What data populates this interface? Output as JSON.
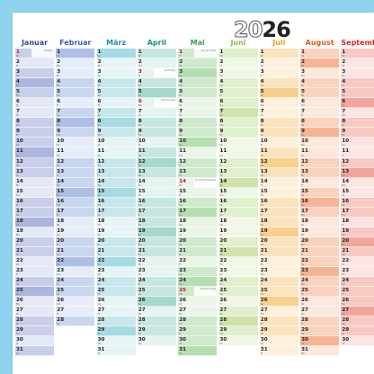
{
  "year": {
    "outline_part": "20",
    "solid_part": "26"
  },
  "weekday_abbr": [
    "Mo",
    "Di",
    "Mi",
    "Do",
    "Fr",
    "Sa",
    "So"
  ],
  "months": [
    {
      "name": "Januar",
      "days": 31,
      "first_weekday": 3,
      "color": "#2f4a8a",
      "shade_a": "#c7cfea",
      "shade_b": "#aeb6de",
      "shade_c": "#e5e9f6",
      "holidays": [
        {
          "day": 1,
          "label": "Neujahr"
        }
      ]
    },
    {
      "name": "Februar",
      "days": 28,
      "first_weekday": 6,
      "color": "#3b5fa8",
      "shade_a": "#c9d6ef",
      "shade_b": "#aebfe6",
      "shade_c": "#e6ecf8",
      "holidays": []
    },
    {
      "name": "März",
      "days": 31,
      "first_weekday": 6,
      "color": "#1a8fa4",
      "shade_a": "#c8e7ec",
      "shade_b": "#a7dbe4",
      "shade_c": "#e6f4f6",
      "holidays": []
    },
    {
      "name": "April",
      "days": 30,
      "first_weekday": 2,
      "color": "#17917e",
      "shade_a": "#c7e6df",
      "shade_b": "#a7d8cc",
      "shade_c": "#e6f3f0",
      "holidays": [
        {
          "day": 3,
          "label": "Karfreitag"
        },
        {
          "day": 6,
          "label": "Ostermontag"
        }
      ]
    },
    {
      "name": "Mai",
      "days": 31,
      "first_weekday": 4,
      "color": "#3aa04a",
      "shade_a": "#cfe9cc",
      "shade_b": "#b5dfb1",
      "shade_c": "#eaf5e8",
      "holidays": [
        {
          "day": 1,
          "label": "Tag der Arbeit"
        },
        {
          "day": 14,
          "label": "Christi Himmelfahrt"
        },
        {
          "day": 25,
          "label": "Pfingstmontag"
        }
      ]
    },
    {
      "name": "Juni",
      "days": 30,
      "first_weekday": 0,
      "color": "#8cc04a",
      "shade_a": "#e0efcd",
      "shade_b": "#cde4ad",
      "shade_c": "#f0f7e6",
      "holidays": []
    },
    {
      "name": "Juli",
      "days": 31,
      "first_weekday": 2,
      "color": "#e5a21a",
      "shade_a": "#fbe3bd",
      "shade_b": "#f8cf8d",
      "shade_c": "#fdf1dd",
      "holidays": []
    },
    {
      "name": "August",
      "days": 31,
      "first_weekday": 5,
      "color": "#e05a1c",
      "shade_a": "#fbd2bd",
      "shade_b": "#f7b494",
      "shade_c": "#fde8dd",
      "holidays": []
    },
    {
      "name": "September",
      "days": 30,
      "first_weekday": 1,
      "color": "#d32a2a",
      "shade_a": "#f8c9c3",
      "shade_b": "#f2a59c",
      "shade_c": "#fce5e2",
      "holidays": []
    }
  ]
}
